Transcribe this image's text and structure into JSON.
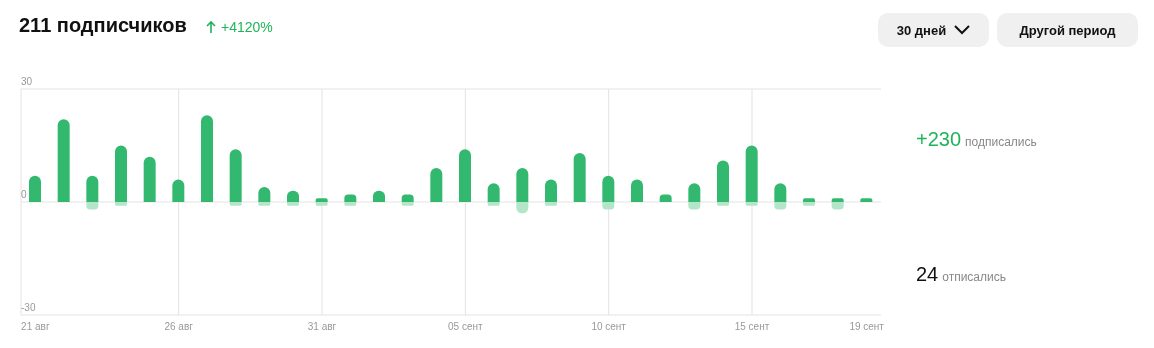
{
  "chart_data": {
    "type": "bar",
    "title": "211 подписчиков",
    "subtitle": "+4120%",
    "categories": [
      "21 авг",
      null,
      null,
      null,
      null,
      "26 авг",
      null,
      null,
      null,
      null,
      "31 авг",
      null,
      null,
      null,
      null,
      "05 сент",
      null,
      null,
      null,
      null,
      "10 сент",
      null,
      null,
      null,
      null,
      "15 сент",
      null,
      null,
      null,
      "19 сент"
    ],
    "series": [
      {
        "color": "#33b96f",
        "values": [
          7,
          22,
          7,
          15,
          12,
          6,
          23,
          14,
          4,
          3,
          1,
          2,
          3,
          2,
          9,
          14,
          5,
          9,
          6,
          13,
          7,
          6,
          2,
          5,
          11,
          15,
          5,
          1,
          1,
          1
        ]
      },
      {
        "color": "#b3e6c8",
        "values": [
          0,
          0,
          -2,
          -1,
          0,
          0,
          0,
          -1,
          -1,
          -1,
          -1,
          -1,
          0,
          -1,
          0,
          0,
          -1,
          -3,
          -1,
          0,
          -2,
          0,
          0,
          -2,
          -1,
          -1,
          -2,
          -1,
          -2,
          0
        ]
      }
    ],
    "stacked": true,
    "ylim": [
      -30,
      30
    ],
    "yticks": [
      -30,
      0,
      30
    ],
    "grid": true,
    "annotations": [
      "30 дней",
      "Другой период",
      "+230",
      "подписались",
      "24",
      "отписались"
    ]
  }
}
